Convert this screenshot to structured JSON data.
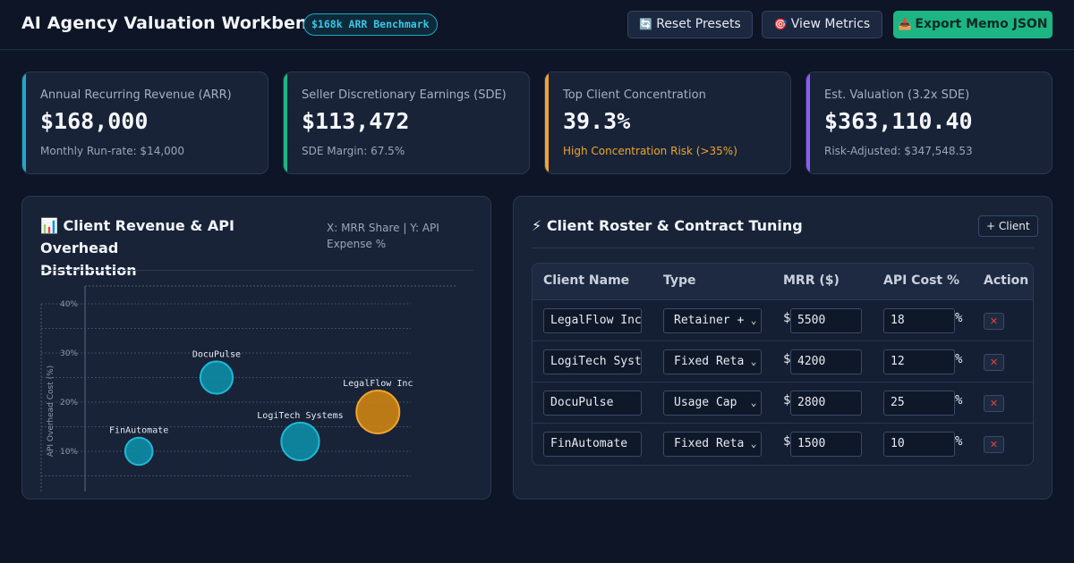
{
  "header": {
    "title": "AI Agency Valuation Workbench",
    "badge": "$168k ARR Benchmark",
    "buttons": [
      {
        "icon": "🔄",
        "label": "Reset Presets"
      },
      {
        "icon": "🎯",
        "label": "View Metrics"
      },
      {
        "icon": "📥",
        "label": "Export Memo JSON"
      }
    ]
  },
  "kpis": [
    {
      "label": "Annual Recurring Revenue (ARR)",
      "value": "$168,000",
      "sub": "Monthly Run-rate: $14,000",
      "color": "#1fa7c6"
    },
    {
      "label": "Seller Discretionary Earnings (SDE)",
      "value": "$113,472",
      "sub": "SDE Margin: 67.5%",
      "color": "#1db584"
    },
    {
      "label": "Top Client Concentration",
      "value": "39.3%",
      "sub": "High Concentration Risk (>35%)",
      "color": "#f0a52b"
    },
    {
      "label": "Est. Valuation (3.2x SDE)",
      "value": "$363,110.40",
      "sub": "Risk-Adjusted: $347,548.53",
      "color": "#8b5cf6"
    }
  ],
  "chart_panel": {
    "icon": "📊",
    "title_line1": "Client Revenue & API Overhead",
    "title_line2": "Distribution",
    "subtitle": "X: MRR Share | Y: API Expense %"
  },
  "chart_data": {
    "type": "scatter",
    "ylabel": "API Overhead Cost (%)",
    "yticks": [
      "10%",
      "20%",
      "30%",
      "40%"
    ],
    "ylim": [
      0,
      40
    ],
    "points": [
      {
        "name": "FinAutomate",
        "x_mrr": 1500,
        "y": 10,
        "highlight": false
      },
      {
        "name": "DocuPulse",
        "x_mrr": 2800,
        "y": 25,
        "highlight": false
      },
      {
        "name": "LogiTech Systems",
        "x_mrr": 4200,
        "y": 12,
        "highlight": false
      },
      {
        "name": "LegalFlow Inc",
        "x_mrr": 5500,
        "y": 18,
        "highlight": true
      }
    ]
  },
  "roster_panel": {
    "icon": "⚡",
    "title": "Client Roster & Contract Tuning",
    "add_button": "+ Client",
    "columns": [
      "Client Name",
      "Type",
      "MRR ($)",
      "API Cost %",
      "Action"
    ],
    "currency_symbol": "$",
    "percent_symbol": "%",
    "delete_glyph": "✕",
    "rows": [
      {
        "name": "LegalFlow Inc",
        "type": "Retainer +",
        "mrr": "5500",
        "api": "18"
      },
      {
        "name": "LogiTech Syst",
        "type": "Fixed Reta",
        "mrr": "4200",
        "api": "12"
      },
      {
        "name": "DocuPulse",
        "type": "Usage Cap",
        "mrr": "2800",
        "api": "25"
      },
      {
        "name": "FinAutomate",
        "type": "Fixed Reta",
        "mrr": "1500",
        "api": "10"
      }
    ]
  }
}
